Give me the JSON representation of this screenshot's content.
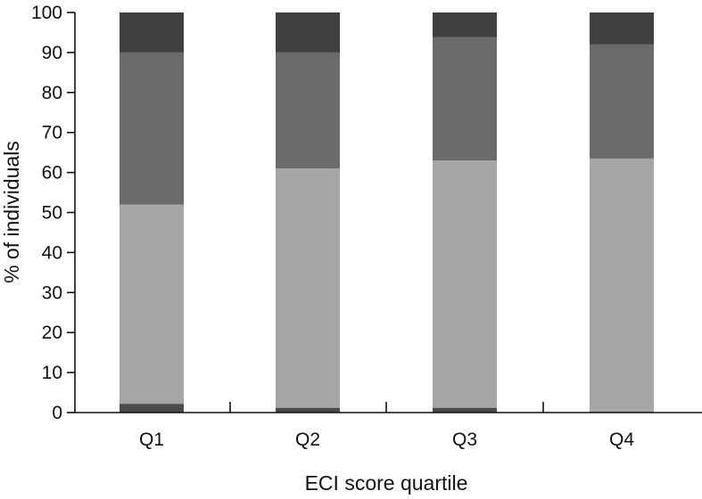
{
  "chart_data": {
    "type": "bar",
    "stacked": true,
    "title": "",
    "xlabel": "ECI score quartile",
    "ylabel": "% of individuals",
    "ylim": [
      0,
      100
    ],
    "yticks": [
      0,
      10,
      20,
      30,
      40,
      50,
      60,
      70,
      80,
      90,
      100
    ],
    "grid": false,
    "legend": "none",
    "categories": [
      "Q1",
      "Q2",
      "Q3",
      "Q4"
    ],
    "series": [
      {
        "values": [
          2.2,
          1.2,
          1.2,
          0.2
        ],
        "color": "#4a4a4a"
      },
      {
        "values": [
          49.8,
          59.8,
          61.8,
          63.3
        ],
        "color": "#a6a6a6"
      },
      {
        "values": [
          38.0,
          29.0,
          30.8,
          28.5
        ],
        "color": "#6b6b6b"
      },
      {
        "values": [
          10.0,
          10.0,
          6.2,
          8.0
        ],
        "color": "#404040"
      }
    ]
  }
}
